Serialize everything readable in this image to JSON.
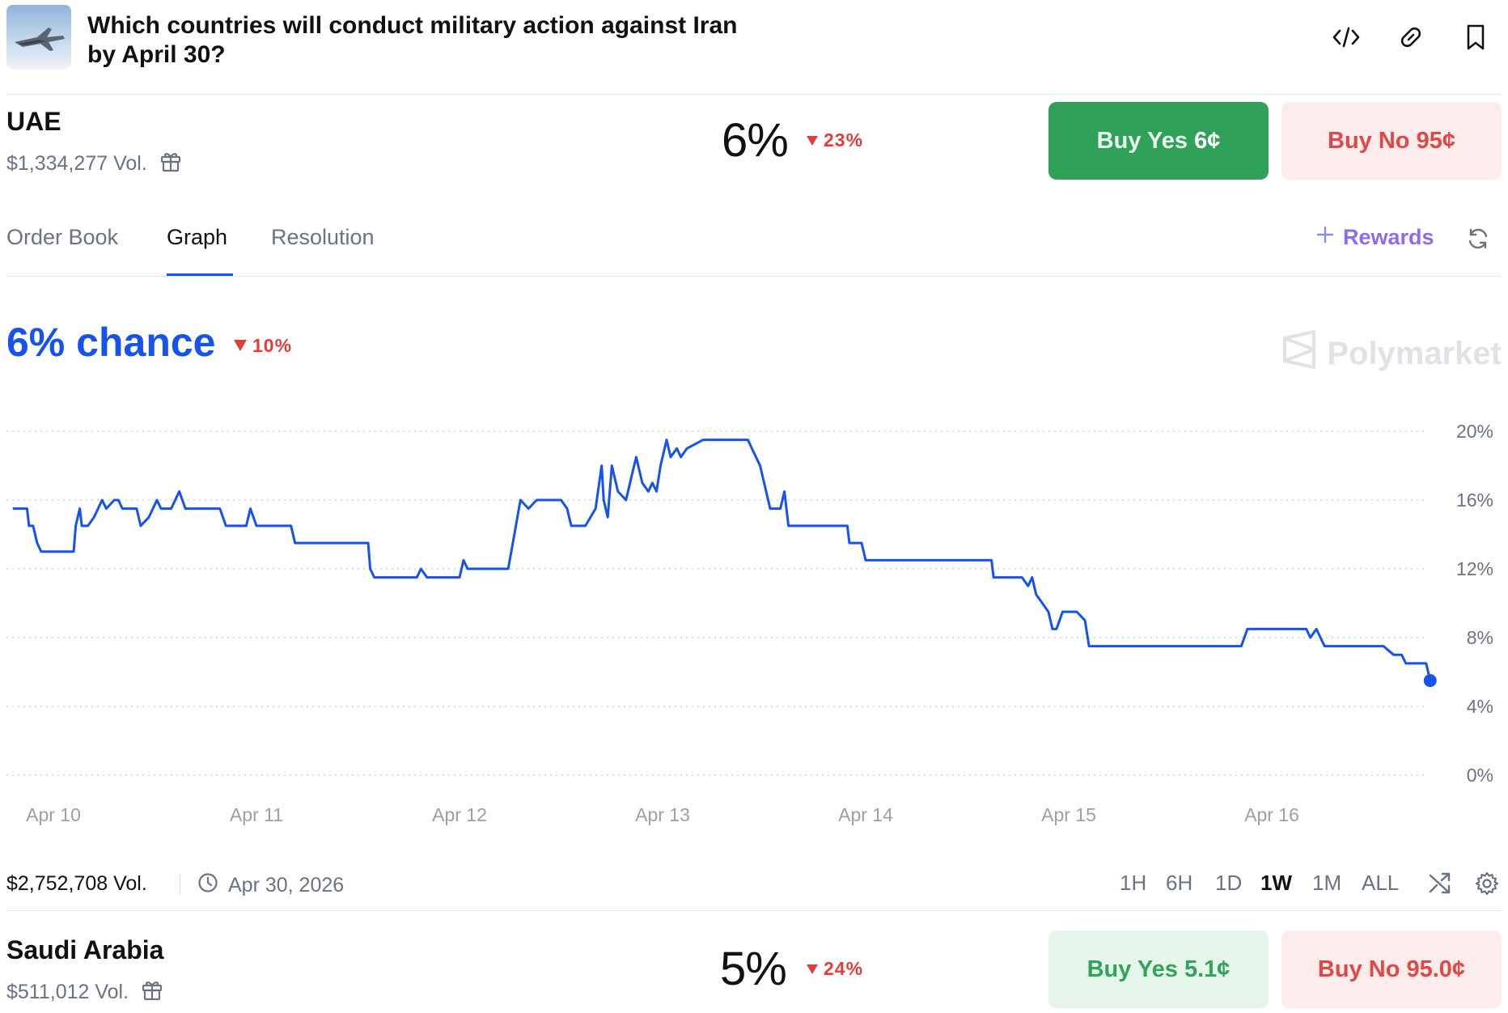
{
  "header": {
    "title": "Which countries will conduct military action against Iran by April 30?",
    "icons": [
      "embed-code-icon",
      "link-icon",
      "bookmark-icon"
    ]
  },
  "market_uae": {
    "name": "UAE",
    "volume": "$1,334,277 Vol.",
    "probability": "6%",
    "change": "23%",
    "buy_yes_label": "Buy Yes",
    "buy_yes_price": "6¢",
    "buy_no_label": "Buy No",
    "buy_no_price": "95¢"
  },
  "tabs": {
    "items": [
      "Order Book",
      "Graph",
      "Resolution"
    ],
    "active": "Graph",
    "rewards_label": "Rewards"
  },
  "graph": {
    "chance_label": "6% chance",
    "chance_change": "10%",
    "brand": "Polymarket",
    "y_ticks": [
      "20%",
      "16%",
      "12%",
      "8%",
      "4%",
      "0%"
    ],
    "x_ticks": [
      "Apr 10",
      "Apr 11",
      "Apr 12",
      "Apr 13",
      "Apr 14",
      "Apr 15",
      "Apr 16"
    ],
    "line_color": "#1652f0"
  },
  "chart_data": {
    "type": "line",
    "ylim": [
      0,
      20
    ],
    "x_range": [
      9.8,
      16.78
    ],
    "series": [
      {
        "values": [
          [
            9.8,
            15.5
          ],
          [
            9.87,
            15.5
          ],
          [
            9.88,
            14.5
          ],
          [
            9.9,
            14.5
          ],
          [
            9.92,
            13.5
          ],
          [
            9.94,
            13.0
          ],
          [
            10.1,
            13.0
          ],
          [
            10.11,
            14.5
          ],
          [
            10.13,
            15.5
          ],
          [
            10.14,
            14.5
          ],
          [
            10.17,
            14.5
          ],
          [
            10.2,
            15.0
          ],
          [
            10.24,
            16.0
          ],
          [
            10.26,
            15.5
          ],
          [
            10.3,
            16.0
          ],
          [
            10.32,
            16.0
          ],
          [
            10.34,
            15.5
          ],
          [
            10.41,
            15.5
          ],
          [
            10.43,
            14.5
          ],
          [
            10.47,
            15.0
          ],
          [
            10.51,
            16.0
          ],
          [
            10.53,
            15.5
          ],
          [
            10.58,
            15.5
          ],
          [
            10.62,
            16.5
          ],
          [
            10.65,
            15.5
          ],
          [
            10.82,
            15.5
          ],
          [
            10.85,
            14.5
          ],
          [
            10.95,
            14.5
          ],
          [
            10.97,
            15.5
          ],
          [
            11.0,
            14.5
          ],
          [
            11.17,
            14.5
          ],
          [
            11.19,
            13.5
          ],
          [
            11.55,
            13.5
          ],
          [
            11.56,
            12.0
          ],
          [
            11.58,
            11.5
          ],
          [
            11.79,
            11.5
          ],
          [
            11.81,
            12.0
          ],
          [
            11.84,
            11.5
          ],
          [
            12.0,
            11.5
          ],
          [
            12.02,
            12.5
          ],
          [
            12.04,
            12.0
          ],
          [
            12.24,
            12.0
          ],
          [
            12.27,
            14.0
          ],
          [
            12.3,
            16.0
          ],
          [
            12.34,
            15.5
          ],
          [
            12.38,
            16.0
          ],
          [
            12.5,
            16.0
          ],
          [
            12.53,
            15.5
          ],
          [
            12.55,
            14.5
          ],
          [
            12.62,
            14.5
          ],
          [
            12.67,
            15.5
          ],
          [
            12.7,
            18.0
          ],
          [
            12.71,
            16.0
          ],
          [
            12.73,
            15.0
          ],
          [
            12.75,
            18.0
          ],
          [
            12.78,
            16.5
          ],
          [
            12.82,
            16.0
          ],
          [
            12.85,
            17.5
          ],
          [
            12.87,
            18.5
          ],
          [
            12.9,
            17.0
          ],
          [
            12.93,
            16.5
          ],
          [
            12.95,
            17.0
          ],
          [
            12.97,
            16.5
          ],
          [
            12.99,
            18.0
          ],
          [
            13.02,
            19.5
          ],
          [
            13.04,
            18.5
          ],
          [
            13.07,
            19.0
          ],
          [
            13.09,
            18.5
          ],
          [
            13.12,
            19.0
          ],
          [
            13.2,
            19.5
          ],
          [
            13.42,
            19.5
          ],
          [
            13.44,
            19.0
          ],
          [
            13.48,
            18.0
          ],
          [
            13.53,
            15.5
          ],
          [
            13.58,
            15.5
          ],
          [
            13.6,
            16.5
          ],
          [
            13.62,
            14.5
          ],
          [
            13.91,
            14.5
          ],
          [
            13.92,
            13.5
          ],
          [
            13.98,
            13.5
          ],
          [
            14.0,
            12.5
          ],
          [
            14.62,
            12.5
          ],
          [
            14.63,
            11.5
          ],
          [
            14.77,
            11.5
          ],
          [
            14.8,
            11.0
          ],
          [
            14.82,
            11.5
          ],
          [
            14.84,
            10.5
          ],
          [
            14.87,
            10.0
          ],
          [
            14.9,
            9.5
          ],
          [
            14.92,
            8.5
          ],
          [
            14.94,
            8.5
          ],
          [
            14.97,
            9.5
          ],
          [
            15.04,
            9.5
          ],
          [
            15.08,
            9.0
          ],
          [
            15.1,
            7.5
          ],
          [
            15.85,
            7.5
          ],
          [
            15.88,
            8.5
          ],
          [
            16.17,
            8.5
          ],
          [
            16.19,
            8.0
          ],
          [
            16.22,
            8.5
          ],
          [
            16.24,
            8.0
          ],
          [
            16.26,
            7.5
          ],
          [
            16.55,
            7.5
          ],
          [
            16.6,
            7.0
          ],
          [
            16.64,
            7.0
          ],
          [
            16.66,
            6.5
          ],
          [
            16.76,
            6.5
          ],
          [
            16.78,
            5.5
          ]
        ]
      }
    ],
    "x_tick_values": [
      10,
      11,
      12,
      13,
      14,
      15,
      16
    ],
    "x_tick_labels": [
      "Apr 10",
      "Apr 11",
      "Apr 12",
      "Apr 13",
      "Apr 14",
      "Apr 15",
      "Apr 16"
    ],
    "y_tick_values": [
      20,
      16,
      12,
      8,
      4,
      0
    ],
    "y_tick_labels": [
      "20%",
      "16%",
      "12%",
      "8%",
      "4%",
      "0%"
    ],
    "grid": true,
    "y_axis_side": "right"
  },
  "footer": {
    "volume": "$2,752,708 Vol.",
    "end_date": "Apr 30, 2026",
    "ranges": [
      "1H",
      "6H",
      "1D",
      "1W",
      "1M",
      "ALL"
    ],
    "active_range": "1W"
  },
  "market_saudi": {
    "name": "Saudi Arabia",
    "volume": "$511,012 Vol.",
    "probability": "5%",
    "change": "24%",
    "buy_yes_label": "Buy Yes",
    "buy_yes_price": "5.1¢",
    "buy_no_label": "Buy No",
    "buy_no_price": "95.0¢"
  }
}
